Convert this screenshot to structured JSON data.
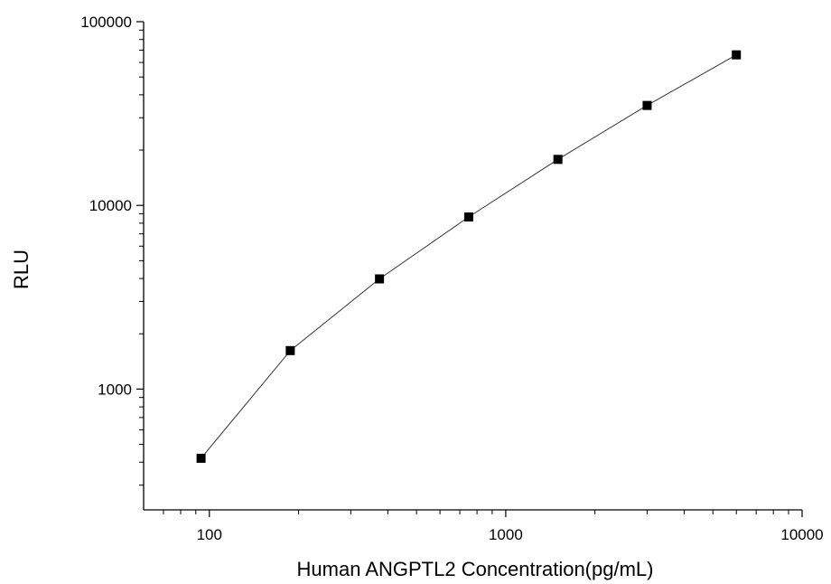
{
  "chart_data": {
    "type": "line",
    "title": "",
    "xlabel": "Human ANGPTL2 Concentration(pg/mL)",
    "ylabel": "RLU",
    "xscale": "log",
    "yscale": "log",
    "xlim": [
      60,
      10000
    ],
    "ylim": [
      220,
      100000
    ],
    "x_ticks": [
      100,
      1000,
      10000
    ],
    "x_tick_labels": [
      "100",
      "1000",
      "10000"
    ],
    "y_ticks": [
      1000,
      10000,
      100000
    ],
    "y_tick_labels": [
      "1000",
      "10000",
      "100000"
    ],
    "grid": false,
    "legend": "none",
    "marker": "square",
    "series": [
      {
        "x": [
          93.75,
          187.5,
          375,
          750,
          1500,
          3000,
          6000
        ],
        "y": [
          420,
          1620,
          3980,
          8650,
          17800,
          35000,
          66000
        ]
      }
    ]
  }
}
